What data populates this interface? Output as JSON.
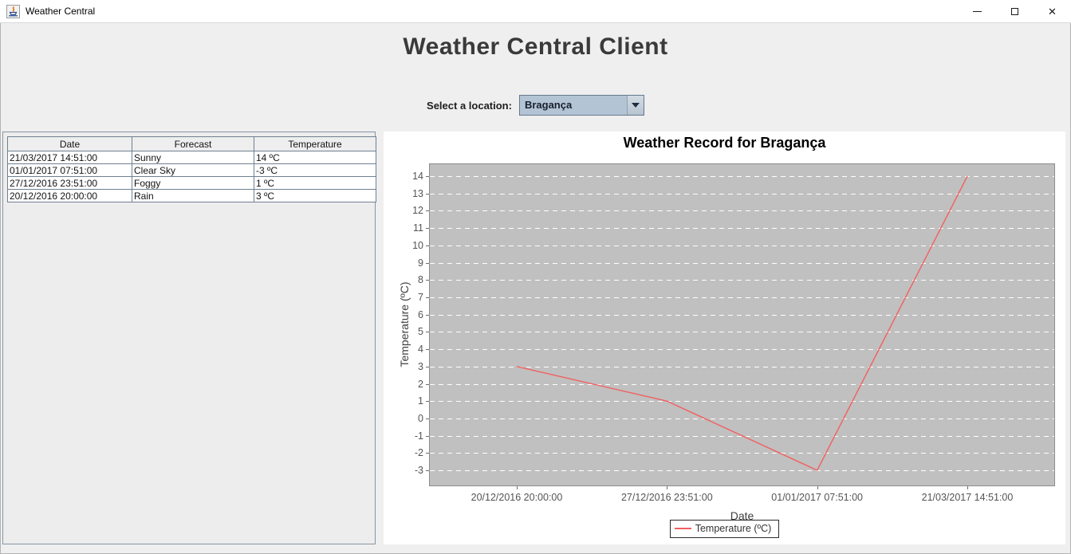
{
  "window": {
    "title": "Weather Central",
    "controls": {
      "minimize": "minimize",
      "maximize": "maximize",
      "close": "close"
    }
  },
  "header": {
    "title": "Weather Central Client"
  },
  "location": {
    "label": "Select a location:",
    "selected": "Bragança"
  },
  "table": {
    "columns": [
      "Date",
      "Forecast",
      "Temperature"
    ],
    "rows": [
      [
        "21/03/2017 14:51:00",
        "Sunny",
        "14 ºC"
      ],
      [
        "01/01/2017 07:51:00",
        "Clear Sky",
        "-3 ºC"
      ],
      [
        "27/12/2016 23:51:00",
        "Foggy",
        "1 ºC"
      ],
      [
        "20/12/2016 20:00:00",
        "Rain",
        "3 ºC"
      ]
    ]
  },
  "chart_data": {
    "type": "line",
    "title": "Weather Record for Bragança",
    "xlabel": "Date",
    "ylabel": "Temperature (ºC)",
    "categories": [
      "20/12/2016 20:00:00",
      "27/12/2016 23:51:00",
      "01/01/2017 07:51:00",
      "21/03/2017 14:51:00"
    ],
    "series": [
      {
        "name": "Temperature (ºC)",
        "values": [
          3,
          1,
          -3,
          14
        ],
        "color": "#f25f5f"
      }
    ],
    "yticks": [
      -3,
      -2,
      -1,
      0,
      1,
      2,
      3,
      4,
      5,
      6,
      7,
      8,
      9,
      10,
      11,
      12,
      13,
      14
    ],
    "ylim": [
      -3.92,
      14.74
    ],
    "grid": "horizontal-dashed-white",
    "legend_position": "bottom",
    "plot_bg": "#c0c0c0",
    "plot_border": "#8c8c8c",
    "gridline_color": "#ffffff"
  },
  "colors": {
    "content_bg": "#efefef",
    "panel_bg": "#ededed",
    "panel_border": "#8695a7",
    "combo_bg": "#b3c4d5",
    "series_line": "#f25f5f"
  }
}
